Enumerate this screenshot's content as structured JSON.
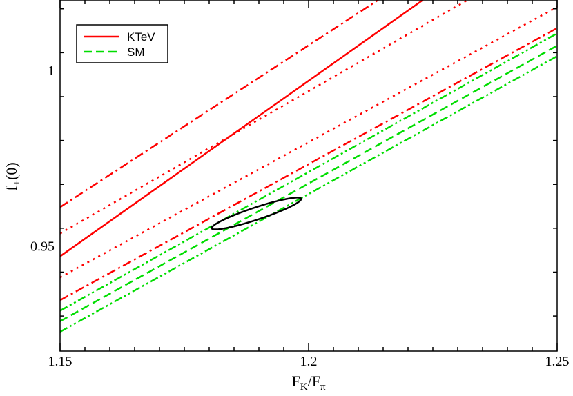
{
  "chart_data": {
    "type": "line",
    "title": "",
    "xlabel": {
      "main": "F",
      "sub1": "K",
      "sep": "/F",
      "sub2": "π"
    },
    "ylabel": {
      "main": "f",
      "sub": "+",
      "suffix": "(0)"
    },
    "xlim": [
      1.15,
      1.25
    ],
    "ylim": [
      0.92,
      1.02
    ],
    "xticks": [
      1.15,
      1.2,
      1.25
    ],
    "xtick_labels": [
      "1.15",
      "1.2",
      "1.25"
    ],
    "yticks": [
      0.95,
      1.0
    ],
    "ytick_labels": [
      "0.95",
      "1"
    ],
    "grid": false,
    "legend": {
      "placement": "top-left",
      "entries": [
        {
          "label": "KTeV",
          "color": "#ff0000",
          "style": "solid"
        },
        {
          "label": "SM",
          "color": "#00dd00",
          "style": "dashed"
        }
      ]
    },
    "series": [
      {
        "group": "KTeV",
        "color": "#ff0000",
        "style": "solid",
        "x": [
          1.15,
          1.223
        ],
        "y": [
          0.947,
          1.02
        ]
      },
      {
        "group": "KTeV",
        "color": "#ff0000",
        "style": "dotted",
        "x": [
          1.15,
          1.232
        ],
        "y": [
          0.9535,
          1.02
        ]
      },
      {
        "group": "KTeV",
        "color": "#ff0000",
        "style": "dotted",
        "x": [
          1.15,
          1.25
        ],
        "y": [
          0.941,
          1.018
        ]
      },
      {
        "group": "KTeV",
        "color": "#ff0000",
        "style": "dashdot",
        "x": [
          1.15,
          1.214
        ],
        "y": [
          0.961,
          1.02
        ]
      },
      {
        "group": "KTeV",
        "color": "#ff0000",
        "style": "dashdot",
        "x": [
          1.15,
          1.25
        ],
        "y": [
          0.9345,
          1.012
        ]
      },
      {
        "group": "SM",
        "color": "#00dd00",
        "style": "dashed",
        "x": [
          1.15,
          1.25
        ],
        "y": [
          0.9285,
          1.007
        ]
      },
      {
        "group": "SM",
        "color": "#00dd00",
        "style": "dashdotdot",
        "x": [
          1.15,
          1.25
        ],
        "y": [
          0.9315,
          1.0105
        ]
      },
      {
        "group": "SM",
        "color": "#00dd00",
        "style": "dashdotdot",
        "x": [
          1.15,
          1.25
        ],
        "y": [
          0.9255,
          1.004
        ]
      }
    ],
    "ellipse": {
      "color": "#000000",
      "center": [
        1.1895,
        0.9592
      ],
      "semi_major_x": 0.009,
      "semi_major_y": 0.0042,
      "semi_minor_x": -0.0003,
      "semi_minor_y": 0.0017
    }
  }
}
